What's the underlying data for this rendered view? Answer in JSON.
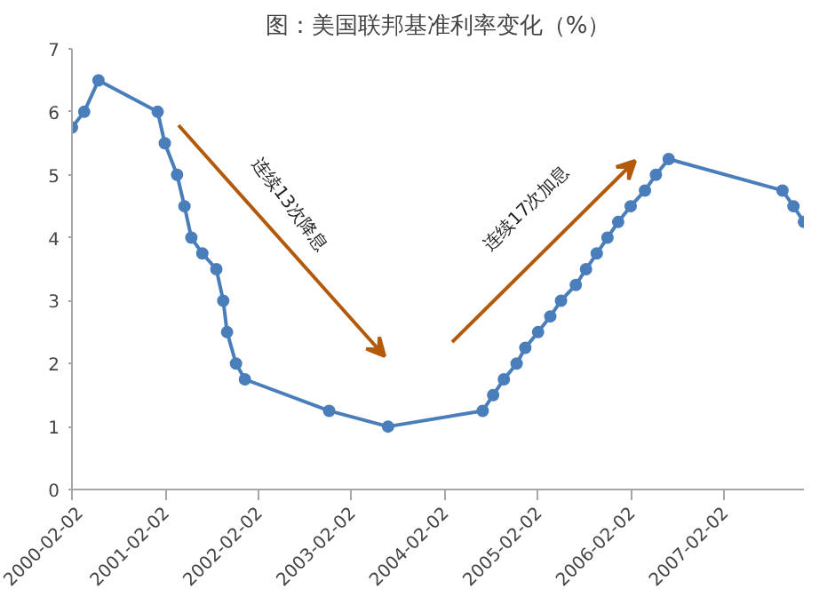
{
  "chart_data": {
    "type": "line",
    "title": "图：美国联邦基准利率变化（%）",
    "x": [
      "2000-02-02",
      "2000-03-21",
      "2000-05-16",
      "2001-01-03",
      "2001-01-31",
      "2001-03-20",
      "2001-04-18",
      "2001-05-15",
      "2001-06-27",
      "2001-08-21",
      "2001-09-17",
      "2001-10-02",
      "2001-11-06",
      "2001-12-11",
      "2002-11-06",
      "2003-06-25",
      "2004-06-30",
      "2004-08-10",
      "2004-09-21",
      "2004-11-10",
      "2004-12-14",
      "2005-02-02",
      "2005-03-22",
      "2005-05-03",
      "2005-06-30",
      "2005-08-09",
      "2005-09-20",
      "2005-11-01",
      "2005-12-13",
      "2006-01-31",
      "2006-03-28",
      "2006-05-10",
      "2006-06-29",
      "2007-09-18",
      "2007-10-31",
      "2007-12-11"
    ],
    "series": [
      {
        "color": "#4a7ebb",
        "values": [
          5.75,
          6.0,
          6.5,
          6.0,
          5.5,
          5.0,
          4.5,
          4.0,
          3.75,
          3.5,
          3.0,
          2.5,
          2.0,
          1.75,
          1.25,
          1.0,
          1.25,
          1.5,
          1.75,
          2.0,
          2.25,
          2.5,
          2.75,
          3.0,
          3.25,
          3.5,
          3.75,
          4.0,
          4.25,
          4.5,
          4.75,
          5.0,
          5.25,
          4.75,
          4.5,
          4.25
        ]
      }
    ],
    "xlim": [
      "2000-02-02",
      "2007-12-11"
    ],
    "xticks": [
      "2000-02-02",
      "2001-02-02",
      "2002-02-02",
      "2003-02-02",
      "2004-02-02",
      "2005-02-02",
      "2006-02-02",
      "2007-02-02"
    ],
    "ylim": [
      0,
      7
    ],
    "yticks": [
      0,
      1,
      2,
      3,
      4,
      5,
      6,
      7
    ],
    "annotations": [
      "连续13次降息",
      "连续17次加息"
    ],
    "grid": false,
    "marker": "circle",
    "line_style": "solid"
  }
}
